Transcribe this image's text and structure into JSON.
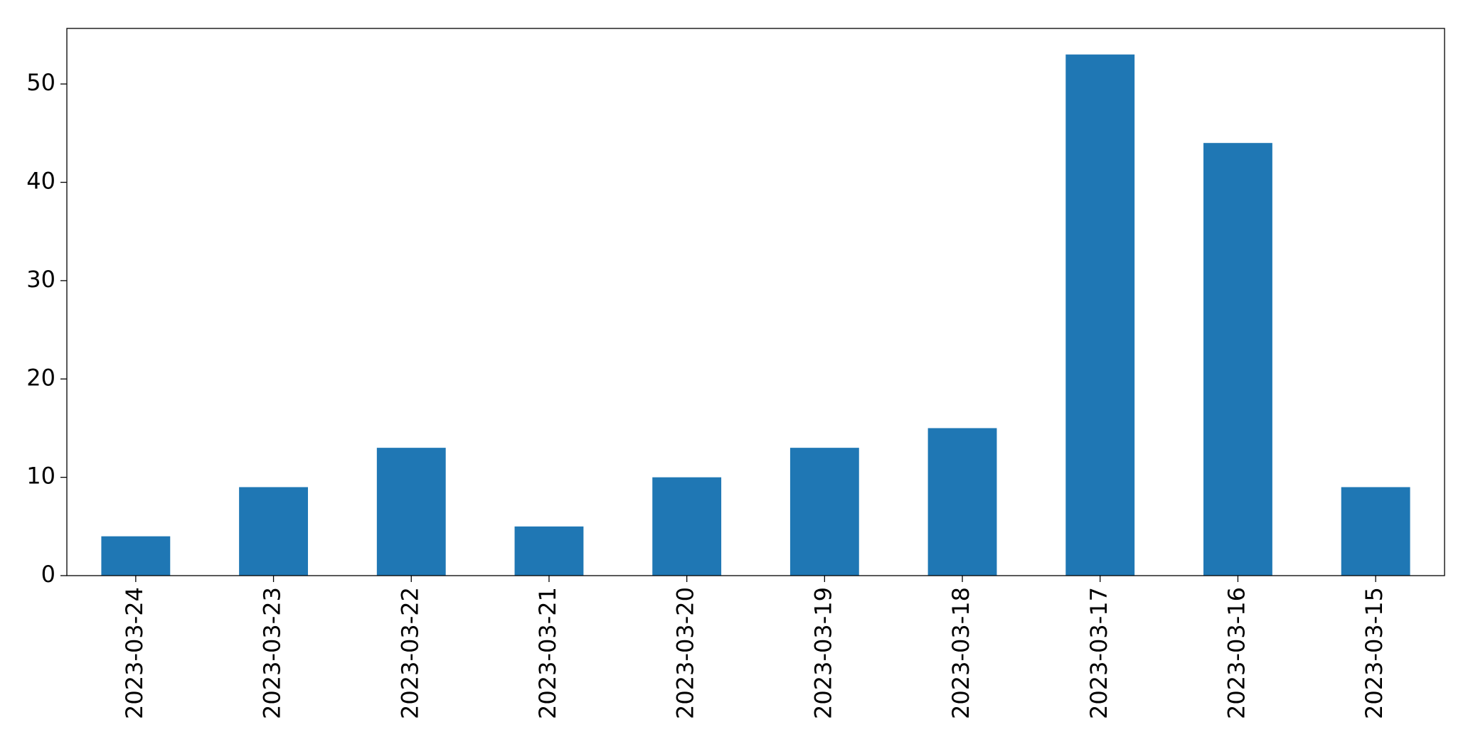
{
  "chart_data": {
    "type": "bar",
    "categories": [
      "2023-03-24",
      "2023-03-23",
      "2023-03-22",
      "2023-03-21",
      "2023-03-20",
      "2023-03-19",
      "2023-03-18",
      "2023-03-17",
      "2023-03-16",
      "2023-03-15"
    ],
    "values": [
      4,
      9,
      13,
      5,
      10,
      13,
      15,
      53,
      44,
      9
    ],
    "color": "#1f77b4",
    "ylim": [
      0,
      55.65
    ],
    "yticks": [
      0,
      10,
      20,
      30,
      40,
      50
    ],
    "grid": false
  }
}
